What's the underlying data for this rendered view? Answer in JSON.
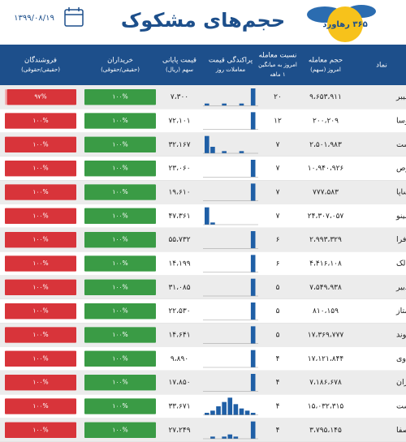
{
  "header": {
    "title": "حجم‌های مشکوک",
    "date": "۱۳۹۹/۰۸/۱۹",
    "logo": "۳۶۵ رهاورد"
  },
  "columns": {
    "symbol": [
      "نماد"
    ],
    "volume": [
      "حجم معامله",
      "امروز (سهم)"
    ],
    "ratio": [
      "نسبت معامله",
      "امروز به میانگین",
      "۱ ماهه"
    ],
    "dispersion": [
      "پراکندگی قیمت",
      "معاملات روز"
    ],
    "price": [
      "قیمت پایانی",
      "سهم (ریال)"
    ],
    "buyers": [
      "خریداران",
      "(حقیقی/حقوقی)"
    ],
    "sellers": [
      "فروشندگان",
      "(حقیقی/حقوقی)"
    ]
  },
  "table": {
    "rows": [
      {
        "symbol": "چفیبر",
        "volume": "۹،۶۵۳،۹۱۱",
        "ratio": "۲۰",
        "price": "۷،۳۰۰",
        "dispersion": [
          1,
          0,
          0,
          1,
          0,
          0,
          1,
          0,
          8
        ],
        "buy_real": 100,
        "buy_label": "۱۰۰%",
        "sell_real": 97,
        "sell_label": "۹۷%"
      },
      {
        "symbol": "ثتوسا",
        "volume": "۲۰۰،۲۰۹",
        "ratio": "۱۲",
        "price": "۷۲،۱۰۱",
        "dispersion": [
          0,
          0,
          0,
          0,
          0,
          0,
          0,
          0,
          8
        ],
        "buy_real": 100,
        "buy_label": "۱۰۰%",
        "sell_real": 100,
        "sell_label": "۱۰۰%"
      },
      {
        "symbol": "زگلدشت",
        "volume": "۲،۵۰۱،۹۸۳",
        "ratio": "۷",
        "price": "۳۲،۱۶۷",
        "dispersion": [
          8,
          3,
          0,
          1,
          0,
          0,
          1,
          0,
          0
        ],
        "buy_real": 100,
        "buy_label": "۱۰۰%",
        "sell_real": 100,
        "sell_label": "۱۰۰%"
      },
      {
        "symbol": "شدوص",
        "volume": "۱۰،۹۴۰،۹۲۶",
        "ratio": "۷",
        "price": "۲۳،۰۶۰",
        "dispersion": [
          0,
          0,
          0,
          0,
          0,
          0,
          0,
          0,
          8
        ],
        "buy_real": 100,
        "buy_label": "۱۰۰%",
        "sell_real": 100,
        "sell_label": "۱۰۰%"
      },
      {
        "symbol": "کساپا",
        "volume": "۷۷۷،۵۸۳",
        "ratio": "۷",
        "price": "۱۹،۶۱۰",
        "dispersion": [
          0,
          0,
          0,
          0,
          0,
          0,
          0,
          0,
          8
        ],
        "buy_real": 100,
        "buy_label": "۱۰۰%",
        "sell_real": 100,
        "sell_label": "۱۰۰%"
      },
      {
        "symbol": "غصینو",
        "volume": "۲۴،۳۰۷،۰۵۷",
        "ratio": "۷",
        "price": "۴۷،۳۶۱",
        "dispersion": [
          8,
          1,
          0,
          0,
          0,
          0,
          0,
          0,
          0
        ],
        "buy_real": 100,
        "buy_label": "۱۰۰%",
        "sell_real": 100,
        "sell_label": "۱۰۰%"
      },
      {
        "symbol": "افرا",
        "volume": "۲،۹۹۳،۳۲۹",
        "ratio": "۶",
        "price": "۵۵،۷۳۲",
        "dispersion": [
          0,
          0,
          0,
          0,
          0,
          0,
          0,
          0,
          8
        ],
        "buy_real": 100,
        "buy_label": "۱۰۰%",
        "sell_real": 100,
        "sell_label": "۱۰۰%"
      },
      {
        "symbol": "دبالک",
        "volume": "۴،۴۱۶،۱۰۸",
        "ratio": "۶",
        "price": "۱۴،۱۹۹",
        "dispersion": [
          0,
          0,
          0,
          0,
          0,
          0,
          0,
          0,
          8
        ],
        "buy_real": 100,
        "buy_label": "۱۰۰%",
        "sell_real": 100,
        "sell_label": "۱۰۰%"
      },
      {
        "symbol": "سدبیر",
        "volume": "۷،۵۴۹،۹۳۸",
        "ratio": "۵",
        "price": "۳۱،۰۸۵",
        "dispersion": [
          0,
          0,
          0,
          0,
          0,
          0,
          0,
          0,
          8
        ],
        "buy_real": 100,
        "buy_label": "۱۰۰%",
        "sell_real": 100,
        "sell_label": "۱۰۰%"
      },
      {
        "symbol": "سمتاز",
        "volume": "۸۱۰،۱۵۹",
        "ratio": "۵",
        "price": "۲۲،۵۳۰",
        "dispersion": [
          0,
          0,
          0,
          0,
          0,
          0,
          0,
          0,
          8
        ],
        "buy_real": 100,
        "buy_label": "۱۰۰%",
        "sell_real": 100,
        "sell_label": "۱۰۰%"
      },
      {
        "symbol": "ثالوند",
        "volume": "۱۷،۳۶۹،۷۷۷",
        "ratio": "۵",
        "price": "۱۴،۶۴۱",
        "dispersion": [
          0,
          0,
          0,
          0,
          0,
          0,
          0,
          0,
          8
        ],
        "buy_real": 100,
        "buy_label": "۱۰۰%",
        "sell_real": 100,
        "sell_label": "۱۰۰%"
      },
      {
        "symbol": "دزهراوی",
        "volume": "۱۷،۱۲۱،۸۴۴",
        "ratio": "۴",
        "price": "۹،۸۹۰",
        "dispersion": [
          0,
          0,
          0,
          0,
          0,
          0,
          0,
          0,
          8
        ],
        "buy_real": 100,
        "buy_label": "۱۰۰%",
        "sell_real": 100,
        "sell_label": "۱۰۰%"
      },
      {
        "symbol": "دیران",
        "volume": "۷،۱۸۶،۶۷۸",
        "ratio": "۴",
        "price": "۱۷،۸۵۰",
        "dispersion": [
          0,
          0,
          0,
          0,
          0,
          0,
          0,
          0,
          8
        ],
        "buy_real": 100,
        "buy_label": "۱۰۰%",
        "sell_real": 100,
        "sell_label": "۱۰۰%"
      },
      {
        "symbol": "زدشت",
        "volume": "۱۵،۰۳۲،۳۱۵",
        "ratio": "۴",
        "price": "۳۳،۶۷۱",
        "dispersion": [
          1,
          2,
          4,
          6,
          8,
          5,
          3,
          2,
          1
        ],
        "buy_real": 100,
        "buy_label": "۱۰۰%",
        "sell_real": 100,
        "sell_label": "۱۰۰%"
      },
      {
        "symbol": "ثاصفا",
        "volume": "۳،۷۹۵،۱۴۵",
        "ratio": "۴",
        "price": "۲۷،۲۴۹",
        "dispersion": [
          0,
          1,
          0,
          1,
          2,
          1,
          0,
          0,
          8
        ],
        "buy_real": 100,
        "buy_label": "۱۰۰%",
        "sell_real": 100,
        "sell_label": "۱۰۰%"
      }
    ]
  }
}
